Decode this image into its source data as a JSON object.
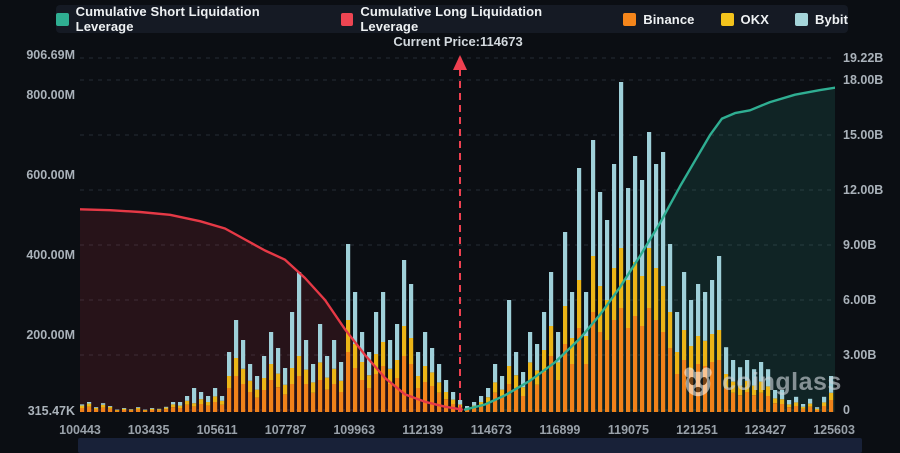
{
  "legend": {
    "items": [
      {
        "label": "Cumulative Short Liquidation Leverage",
        "color": "#2fae92"
      },
      {
        "label": "Cumulative Long Liquidation Leverage",
        "color": "#ed4552"
      },
      {
        "label": "Binance",
        "color": "#f5861b"
      },
      {
        "label": "OKX",
        "color": "#f3c31c"
      },
      {
        "label": "Bybit",
        "color": "#a5d5da"
      }
    ]
  },
  "current_price_label": "Current Price:114673",
  "current_price_value": 114673,
  "watermark": {
    "text": "coinglass",
    "icon": "panda-logo-icon"
  },
  "chart_data": {
    "type": "mixed-bar-line",
    "title": "",
    "left_axis": {
      "unit": "M",
      "ticks": [
        "906.69M",
        "800.00M",
        "600.00M",
        "400.00M",
        "200.00M",
        "315.47K"
      ],
      "max": "906.69M",
      "min": "315.47K"
    },
    "right_axis": {
      "unit": "B",
      "ticks": [
        "19.22B",
        "18.00B",
        "15.00B",
        "12.00B",
        "9.00B",
        "6.00B",
        "3.00B",
        "0"
      ],
      "max": "19.22B",
      "min": "0"
    },
    "x_ticks": [
      "100443",
      "103435",
      "105611",
      "107787",
      "109963",
      "112139",
      "114673",
      "116899",
      "119075",
      "121251",
      "123427",
      "125603"
    ],
    "grid": "dashed-horizontal",
    "legend_position": "top-center",
    "bar_series_names": [
      "Binance",
      "OKX",
      "Bybit"
    ],
    "bar_colors": [
      "#f0821a",
      "#ecb517",
      "#9fd0d9"
    ],
    "bars_unit": "M, stacked triples [Binance, OKX, Bybit]",
    "bars": [
      [
        10,
        6,
        3
      ],
      [
        13,
        8,
        4
      ],
      [
        6,
        4,
        2
      ],
      [
        11,
        7,
        4
      ],
      [
        8,
        5,
        2
      ],
      [
        3,
        2,
        1
      ],
      [
        5,
        3,
        2
      ],
      [
        4,
        2,
        1
      ],
      [
        6,
        4,
        2
      ],
      [
        3,
        2,
        1
      ],
      [
        5,
        3,
        2
      ],
      [
        4,
        3,
        1
      ],
      [
        7,
        4,
        2
      ],
      [
        12,
        7,
        6
      ],
      [
        10,
        6,
        9
      ],
      [
        18,
        10,
        12
      ],
      [
        14,
        8,
        38
      ],
      [
        20,
        12,
        18
      ],
      [
        16,
        9,
        15
      ],
      [
        25,
        14,
        21
      ],
      [
        18,
        10,
        12
      ],
      [
        60,
        30,
        60
      ],
      [
        90,
        45,
        95
      ],
      [
        70,
        38,
        72
      ],
      [
        50,
        28,
        42
      ],
      [
        36,
        20,
        34
      ],
      [
        55,
        30,
        55
      ],
      [
        80,
        40,
        80
      ],
      [
        62,
        34,
        64
      ],
      [
        44,
        24,
        42
      ],
      [
        70,
        40,
        140
      ],
      [
        90,
        50,
        210
      ],
      [
        70,
        36,
        74
      ],
      [
        48,
        26,
        46
      ],
      [
        80,
        44,
        96
      ],
      [
        56,
        30,
        54
      ],
      [
        70,
        38,
        72
      ],
      [
        50,
        28,
        47
      ],
      [
        150,
        80,
        190
      ],
      [
        110,
        60,
        130
      ],
      [
        80,
        45,
        75
      ],
      [
        60,
        32,
        58
      ],
      [
        95,
        50,
        105
      ],
      [
        115,
        60,
        125
      ],
      [
        70,
        38,
        72
      ],
      [
        85,
        45,
        90
      ],
      [
        140,
        75,
        165
      ],
      [
        120,
        65,
        135
      ],
      [
        60,
        30,
        60
      ],
      [
        75,
        40,
        85
      ],
      [
        65,
        34,
        61
      ],
      [
        48,
        26,
        46
      ],
      [
        32,
        18,
        30
      ],
      [
        20,
        11,
        19
      ],
      [
        12,
        7,
        11
      ],
      [
        6,
        4,
        5
      ],
      [
        10,
        6,
        9
      ],
      [
        16,
        9,
        15
      ],
      [
        24,
        13,
        23
      ],
      [
        48,
        26,
        46
      ],
      [
        36,
        20,
        34
      ],
      [
        70,
        45,
        165
      ],
      [
        60,
        32,
        58
      ],
      [
        40,
        22,
        38
      ],
      [
        80,
        44,
        76
      ],
      [
        68,
        36,
        66
      ],
      [
        100,
        55,
        95
      ],
      [
        140,
        75,
        135
      ],
      [
        80,
        44,
        76
      ],
      [
        170,
        95,
        185
      ],
      [
        120,
        65,
        115
      ],
      [
        210,
        120,
        280
      ],
      [
        120,
        70,
        110
      ],
      [
        250,
        140,
        290
      ],
      [
        200,
        115,
        235
      ],
      [
        180,
        100,
        200
      ],
      [
        230,
        130,
        260
      ],
      [
        260,
        150,
        415
      ],
      [
        210,
        120,
        230
      ],
      [
        240,
        135,
        265
      ],
      [
        215,
        125,
        240
      ],
      [
        260,
        150,
        290
      ],
      [
        230,
        130,
        260
      ],
      [
        200,
        115,
        335
      ],
      [
        160,
        90,
        170
      ],
      [
        95,
        55,
        100
      ],
      [
        130,
        75,
        145
      ],
      [
        105,
        60,
        115
      ],
      [
        120,
        70,
        130
      ],
      [
        115,
        63,
        122
      ],
      [
        125,
        70,
        135
      ],
      [
        130,
        75,
        185
      ],
      [
        60,
        35,
        67
      ],
      [
        48,
        28,
        54
      ],
      [
        42,
        24,
        46
      ],
      [
        50,
        28,
        52
      ],
      [
        42,
        24,
        41
      ],
      [
        48,
        28,
        49
      ],
      [
        40,
        24,
        43
      ],
      [
        22,
        12,
        21
      ],
      [
        20,
        12,
        23
      ],
      [
        12,
        7,
        11
      ],
      [
        15,
        9,
        14
      ],
      [
        8,
        5,
        7
      ],
      [
        13,
        8,
        12
      ],
      [
        5,
        3,
        4
      ],
      [
        15,
        9,
        14
      ],
      [
        30,
        18,
        42
      ]
    ],
    "lines": [
      {
        "name": "Cumulative Short Liquidation Leverage",
        "color": "#2fae92",
        "unit": "B",
        "points": [
          [
            385,
            0.02
          ],
          [
            405,
            0.3
          ],
          [
            425,
            0.8
          ],
          [
            450,
            1.6
          ],
          [
            475,
            2.6
          ],
          [
            500,
            3.9
          ],
          [
            520,
            5.2
          ],
          [
            540,
            6.7
          ],
          [
            560,
            8.4
          ],
          [
            580,
            10.2
          ],
          [
            600,
            12.2
          ],
          [
            615,
            13.6
          ],
          [
            630,
            15.0
          ],
          [
            642,
            15.9
          ],
          [
            655,
            16.2
          ],
          [
            670,
            16.35
          ],
          [
            690,
            16.8
          ],
          [
            715,
            17.2
          ],
          [
            740,
            17.45
          ],
          [
            757,
            17.6
          ]
        ]
      },
      {
        "name": "Cumulative Long Liquidation Leverage",
        "color": "#e63946",
        "unit": "B",
        "points": [
          [
            0,
            10.95
          ],
          [
            30,
            10.9
          ],
          [
            60,
            10.8
          ],
          [
            90,
            10.65
          ],
          [
            120,
            10.3
          ],
          [
            145,
            9.9
          ],
          [
            165,
            9.3
          ],
          [
            185,
            8.7
          ],
          [
            205,
            8.2
          ],
          [
            225,
            7.2
          ],
          [
            245,
            6.0
          ],
          [
            265,
            4.4
          ],
          [
            285,
            3.0
          ],
          [
            305,
            1.75
          ],
          [
            325,
            0.85
          ],
          [
            345,
            0.45
          ],
          [
            365,
            0.18
          ],
          [
            382,
            0.02
          ]
        ]
      }
    ],
    "current_price_line_x": 380
  }
}
